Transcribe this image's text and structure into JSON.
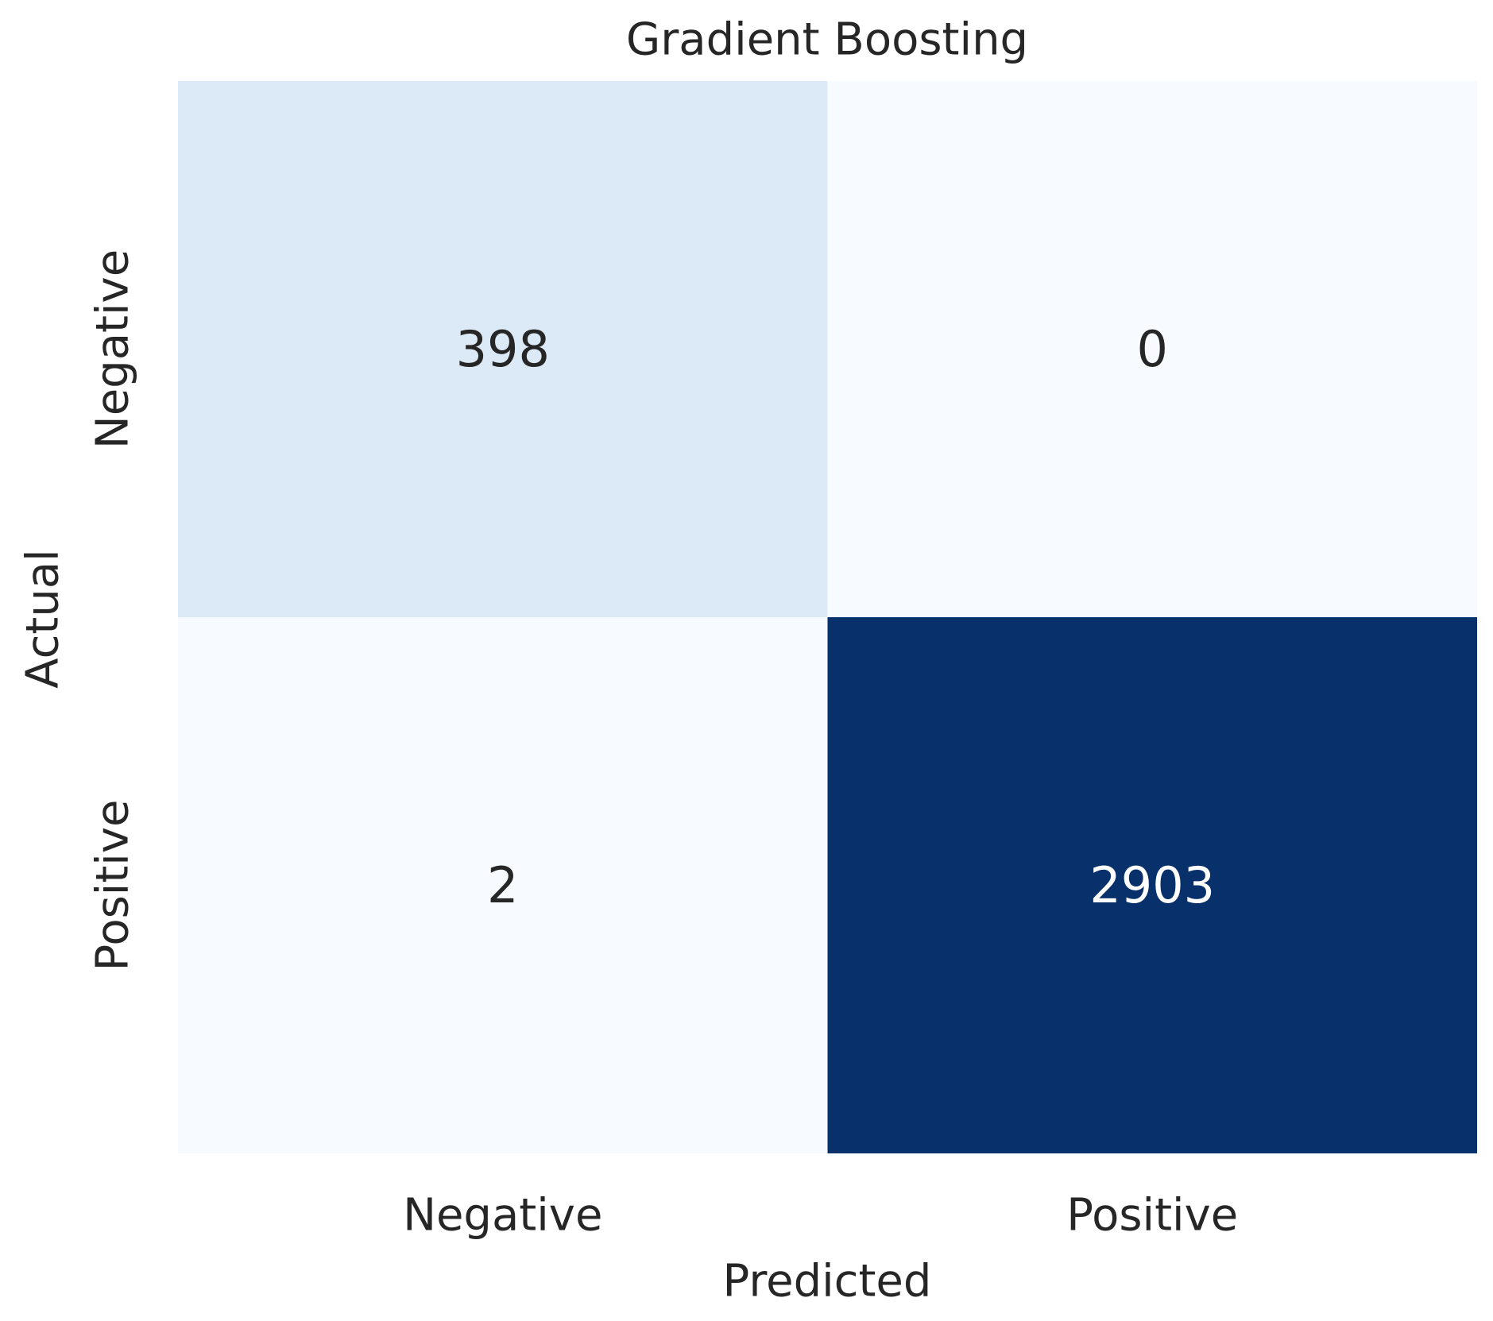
{
  "chart_data": {
    "type": "heatmap",
    "title": "Gradient Boosting",
    "x_label": "Predicted",
    "y_label": "Actual",
    "columns": [
      "Negative",
      "Positive"
    ],
    "rows": [
      "Negative",
      "Positive"
    ],
    "values": [
      [
        398,
        0
      ],
      [
        2,
        2903
      ]
    ],
    "colorscale": [
      "#f7fbff",
      "#deebf7",
      "#c6dbef",
      "#9ecae1",
      "#6baed6",
      "#4292c6",
      "#2171b5",
      "#08519c",
      "#08306b"
    ]
  }
}
